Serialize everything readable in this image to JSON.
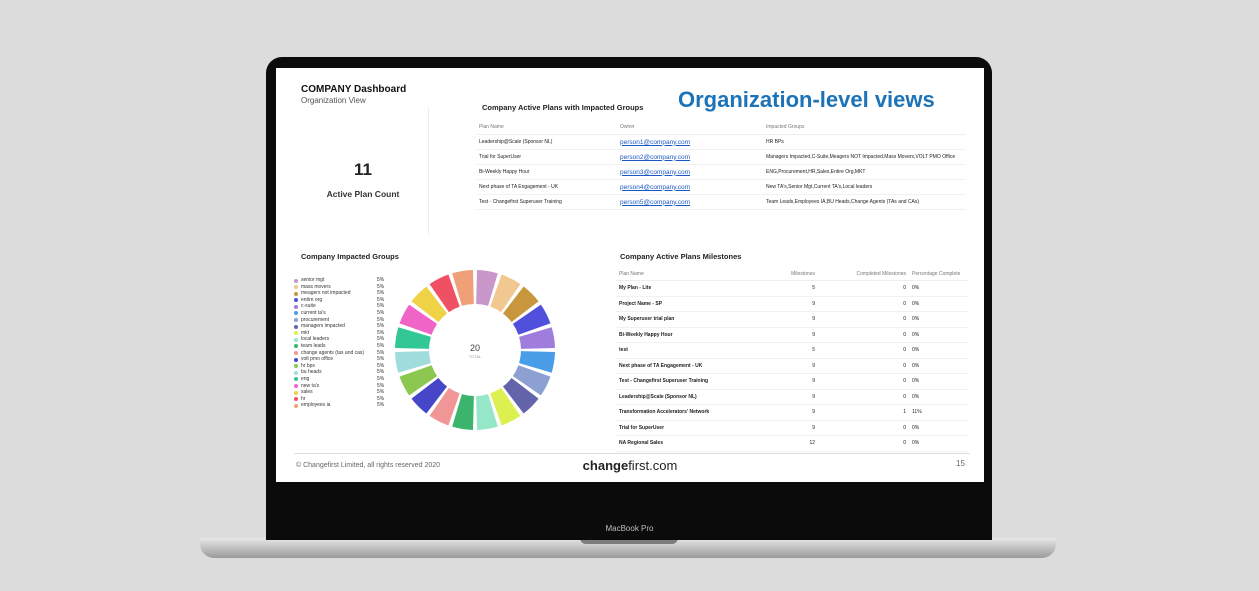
{
  "device": {
    "model_label": "MacBook Pro"
  },
  "dashboard": {
    "title": "COMPANY Dashboard",
    "subtitle": "Organization View",
    "banner": "Organization-level views",
    "kpi": {
      "value": "11",
      "label": "Active Plan Count"
    }
  },
  "active_plans": {
    "title": "Company Active Plans with Impacted Groups",
    "columns": [
      "Plan Name",
      "Owner",
      "Impacted Groups"
    ],
    "rows": [
      [
        "Leadership@Scale (Sponsor NL)",
        "person1@company.com",
        "HR BPs"
      ],
      [
        "Trial for SuperUser",
        "person2@company.com",
        "Managers Impacted,C-Suite,Meagers NOT Impacted,Mass Movers,VOLT PMO Office"
      ],
      [
        "Bi-Weekly Happy Hour",
        "person3@company.com",
        "ENG,Procurement,HR,Sales,Entire Org,MKT"
      ],
      [
        "Next phase of TA Engagement - UK",
        "person4@company.com",
        "New TA's,Senior Mgt,Current TA's,Local leaders"
      ],
      [
        "Test - Changefirst Superuser Training",
        "person5@company.com",
        "Team Leads,Employees IA,BU Heads,Change Agents (TAs and CAs)"
      ]
    ]
  },
  "impacted_groups": {
    "title": "Company Impacted Groups",
    "total_value": "20",
    "total_label": "TOTAL",
    "items": [
      {
        "name": "senior mgt",
        "pct": "5%",
        "color": "#c896c8"
      },
      {
        "name": "mass movers",
        "pct": "5%",
        "color": "#f0c890"
      },
      {
        "name": "meagers not impacted",
        "pct": "5%",
        "color": "#c8963c"
      },
      {
        "name": "entire org",
        "pct": "5%",
        "color": "#5050dc"
      },
      {
        "name": "c-suite",
        "pct": "5%",
        "color": "#a07cdc"
      },
      {
        "name": "current ta's",
        "pct": "5%",
        "color": "#4a9ee8"
      },
      {
        "name": "procurement",
        "pct": "5%",
        "color": "#8ca0d2"
      },
      {
        "name": "managers impacted",
        "pct": "5%",
        "color": "#6464aa"
      },
      {
        "name": "mkt",
        "pct": "5%",
        "color": "#dcf050"
      },
      {
        "name": "local leaders",
        "pct": "5%",
        "color": "#96e6c8"
      },
      {
        "name": "team leads",
        "pct": "5%",
        "color": "#3cb46e"
      },
      {
        "name": "change agents (tas and cas)",
        "pct": "5%",
        "color": "#f09696"
      },
      {
        "name": "volt pmo office",
        "pct": "5%",
        "color": "#4646c8"
      },
      {
        "name": "hr bps",
        "pct": "5%",
        "color": "#8cc850"
      },
      {
        "name": "bu heads",
        "pct": "5%",
        "color": "#a0dcdc"
      },
      {
        "name": "eng",
        "pct": "5%",
        "color": "#32c896"
      },
      {
        "name": "new ta's",
        "pct": "5%",
        "color": "#f064c8"
      },
      {
        "name": "sales",
        "pct": "5%",
        "color": "#f0d246"
      },
      {
        "name": "hr",
        "pct": "5%",
        "color": "#f05064"
      },
      {
        "name": "employees ia",
        "pct": "5%",
        "color": "#f0a078"
      }
    ]
  },
  "milestones": {
    "title": "Company Active Plans Milestones",
    "columns": [
      "Plan Name",
      "Milestones",
      "Completed Milestones",
      "Percentage Complete"
    ],
    "rows": [
      [
        "My Plan - Lite",
        "5",
        "0",
        "0%"
      ],
      [
        "Project Name - SP",
        "9",
        "0",
        "0%"
      ],
      [
        "My Superuser trial plan",
        "9",
        "0",
        "0%"
      ],
      [
        "Bi-Weekly Happy Hour",
        "9",
        "0",
        "0%"
      ],
      [
        "test",
        "5",
        "0",
        "0%"
      ],
      [
        "Next phase of TA Engagement - UK",
        "9",
        "0",
        "0%"
      ],
      [
        "Test - Changefirst Superuser Training",
        "9",
        "0",
        "0%"
      ],
      [
        "Leadership@Scale (Sponsor NL)",
        "9",
        "0",
        "0%"
      ],
      [
        "Transformation Accelerators' Network",
        "9",
        "1",
        "11%"
      ],
      [
        "Trial for SuperUser",
        "9",
        "0",
        "0%"
      ],
      [
        "NA Regional Sales",
        "12",
        "0",
        "0%"
      ]
    ]
  },
  "footer": {
    "copyright": "© Changefirst Limited, all rights reserved 2020",
    "brand_bold": "change",
    "brand_rest": "first.com",
    "page_number": "15"
  }
}
